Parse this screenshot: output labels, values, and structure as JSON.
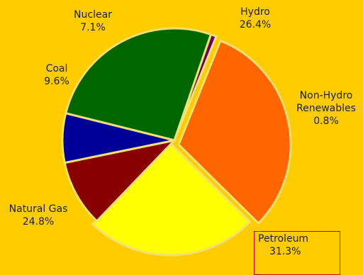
{
  "chart_data": {
    "type": "pie",
    "slices": [
      {
        "label": "Hydro",
        "value": 26.4,
        "value_text": "26.4%",
        "color": "#006600"
      },
      {
        "label": "Non-Hydro Renewables",
        "value": 0.8,
        "value_text": "0.8%",
        "color": "#660066"
      },
      {
        "label": "Petroleum",
        "value": 31.3,
        "value_text": "31.3%",
        "color": "#ff6600"
      },
      {
        "label": "Natural Gas",
        "value": 24.8,
        "value_text": "24.8%",
        "color": "#ffff00"
      },
      {
        "label": "Coal",
        "value": 9.6,
        "value_text": "9.6%",
        "color": "#880000"
      },
      {
        "label": "Nuclear",
        "value": 7.1,
        "value_text": "7.1%",
        "color": "#000099"
      }
    ],
    "legend": "none",
    "highlighted_slice": "Petroleum"
  },
  "labels": {
    "hydro": {
      "name": "Hydro",
      "pct": "26.4%"
    },
    "nonhydro": {
      "name1": "Non-Hydro",
      "name2": "Renewables",
      "pct": "0.8%"
    },
    "petroleum": {
      "name": "Petroleum",
      "pct": "31.3%"
    },
    "natgas": {
      "name": "Natural Gas",
      "pct": "24.8%"
    },
    "coal": {
      "name": "Coal",
      "pct": "9.6%"
    },
    "nuclear": {
      "name": "Nuclear",
      "pct": "7.1%"
    }
  },
  "colors": {
    "background": "#ffcc00",
    "slice_border": "#f2e070",
    "highlight_box": "#d40000"
  }
}
